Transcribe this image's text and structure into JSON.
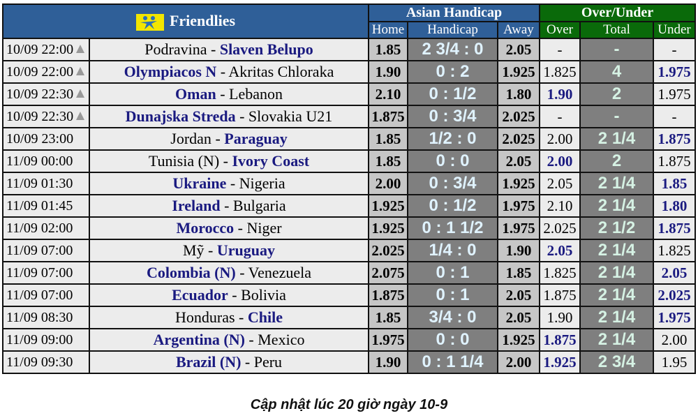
{
  "header": {
    "league": "Friendlies",
    "ah": "Asian Handicap",
    "ou": "Over/Under",
    "home": "Home",
    "handicap": "Handicap",
    "away": "Away",
    "over": "Over",
    "total": "Total",
    "under": "Under"
  },
  "colors": {
    "header_blue": "#2f5f98",
    "header_green": "#0a6a0a",
    "favorite_blue": "#1a1a80"
  },
  "rows": [
    {
      "time": "10/09 22:00",
      "warn": true,
      "home": "Podravina",
      "away": "Slaven Belupo",
      "fav": "away",
      "h": "1.85",
      "hc": "2 3/4 : 0",
      "a": "2.05",
      "over": "-",
      "total": "-",
      "under": "-",
      "oub": ""
    },
    {
      "time": "10/09 22:00",
      "warn": true,
      "home": "Olympiacos N",
      "away": "Akritas Chloraka",
      "fav": "home",
      "h": "1.90",
      "hc": "0 : 2",
      "a": "1.925",
      "over": "1.825",
      "total": "4",
      "under": "1.975",
      "oub": "under"
    },
    {
      "time": "10/09 22:30",
      "warn": true,
      "home": "Oman",
      "away": "Lebanon",
      "fav": "home",
      "h": "2.10",
      "hc": "0 : 1/2",
      "a": "1.80",
      "over": "1.90",
      "total": "2",
      "under": "1.975",
      "oub": "over"
    },
    {
      "time": "10/09 22:30",
      "warn": true,
      "home": "Dunajska Streda",
      "away": "Slovakia U21",
      "fav": "home",
      "h": "1.875",
      "hc": "0 : 3/4",
      "a": "2.025",
      "over": "-",
      "total": "-",
      "under": "-",
      "oub": ""
    },
    {
      "time": "10/09 23:00",
      "warn": false,
      "home": "Jordan",
      "away": "Paraguay",
      "fav": "away",
      "h": "1.85",
      "hc": "1/2 : 0",
      "a": "2.025",
      "over": "2.00",
      "total": "2 1/4",
      "under": "1.875",
      "oub": "under"
    },
    {
      "time": "11/09 00:00",
      "warn": false,
      "home": "Tunisia (N)",
      "away": "Ivory Coast",
      "fav": "away",
      "h": "1.85",
      "hc": "0 : 0",
      "a": "2.05",
      "over": "2.00",
      "total": "2",
      "under": "1.875",
      "oub": "over"
    },
    {
      "time": "11/09 01:30",
      "warn": false,
      "home": "Ukraine",
      "away": "Nigeria",
      "fav": "home",
      "h": "2.00",
      "hc": "0 : 3/4",
      "a": "1.925",
      "over": "2.05",
      "total": "2 1/4",
      "under": "1.85",
      "oub": "under"
    },
    {
      "time": "11/09 01:45",
      "warn": false,
      "home": "Ireland",
      "away": "Bulgaria",
      "fav": "home",
      "h": "1.925",
      "hc": "0 : 1/2",
      "a": "1.975",
      "over": "2.10",
      "total": "2 1/4",
      "under": "1.80",
      "oub": "under"
    },
    {
      "time": "11/09 02:00",
      "warn": false,
      "home": "Morocco",
      "away": "Niger",
      "fav": "home",
      "h": "1.925",
      "hc": "0 : 1 1/2",
      "a": "1.975",
      "over": "2.025",
      "total": "2 1/2",
      "under": "1.875",
      "oub": "under"
    },
    {
      "time": "11/09 07:00",
      "warn": false,
      "home": "Mỹ",
      "away": "Uruguay",
      "fav": "away",
      "h": "2.025",
      "hc": "1/4 : 0",
      "a": "1.90",
      "over": "2.05",
      "total": "2 1/4",
      "under": "1.825",
      "oub": "over"
    },
    {
      "time": "11/09 07:00",
      "warn": false,
      "home": "Colombia (N)",
      "away": "Venezuela",
      "fav": "home",
      "h": "2.075",
      "hc": "0 : 1",
      "a": "1.85",
      "over": "1.825",
      "total": "2 1/4",
      "under": "2.05",
      "oub": "under"
    },
    {
      "time": "11/09 07:00",
      "warn": false,
      "home": "Ecuador",
      "away": "Bolivia",
      "fav": "home",
      "h": "1.875",
      "hc": "0 : 1",
      "a": "2.05",
      "over": "1.875",
      "total": "2 1/4",
      "under": "2.025",
      "oub": "under"
    },
    {
      "time": "11/09 08:30",
      "warn": false,
      "home": "Honduras",
      "away": "Chile",
      "fav": "away",
      "h": "1.85",
      "hc": "3/4 : 0",
      "a": "2.05",
      "over": "1.90",
      "total": "2 1/4",
      "under": "1.975",
      "oub": "under"
    },
    {
      "time": "11/09 09:00",
      "warn": false,
      "home": "Argentina (N)",
      "away": "Mexico",
      "fav": "home",
      "h": "1.975",
      "hc": "0 : 0",
      "a": "1.925",
      "over": "1.875",
      "total": "2 1/4",
      "under": "2.00",
      "oub": "over"
    },
    {
      "time": "11/09 09:30",
      "warn": false,
      "home": "Brazil (N)",
      "away": "Peru",
      "fav": "home",
      "h": "1.90",
      "hc": "0 : 1 1/4",
      "a": "2.00",
      "over": "1.925",
      "total": "2 3/4",
      "under": "1.95",
      "oub": "over"
    }
  ],
  "footer": "Cập nhật lúc 20 giờ ngày 10-9"
}
